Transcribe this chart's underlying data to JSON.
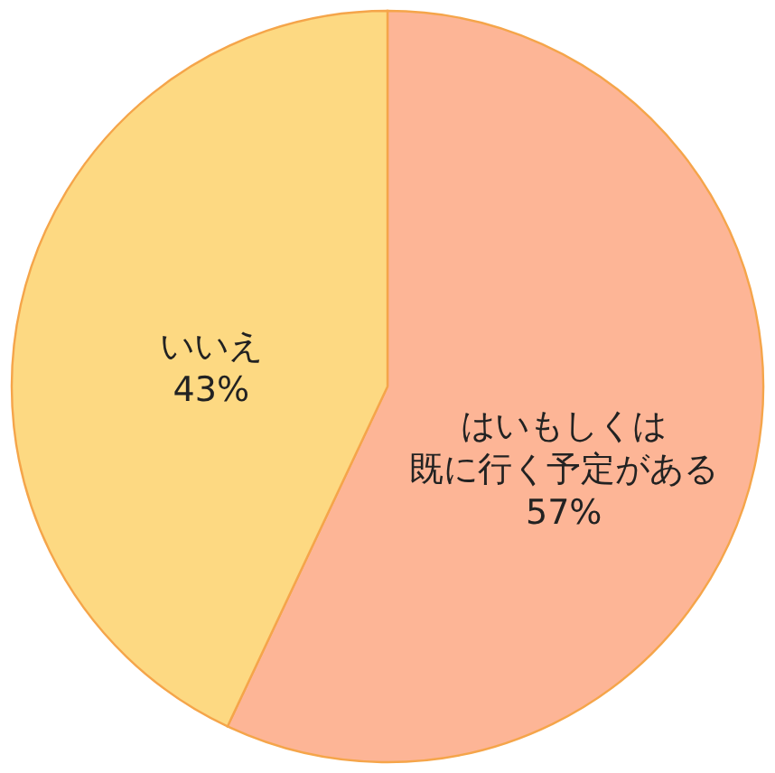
{
  "chart_data": {
    "type": "pie",
    "categories": [
      "はいもしくは既に行く予定がある",
      "いいえ"
    ],
    "values": [
      57,
      43
    ],
    "colors": [
      "#fdb596",
      "#fdd982"
    ],
    "value_labels": [
      "57%",
      "43%"
    ]
  }
}
